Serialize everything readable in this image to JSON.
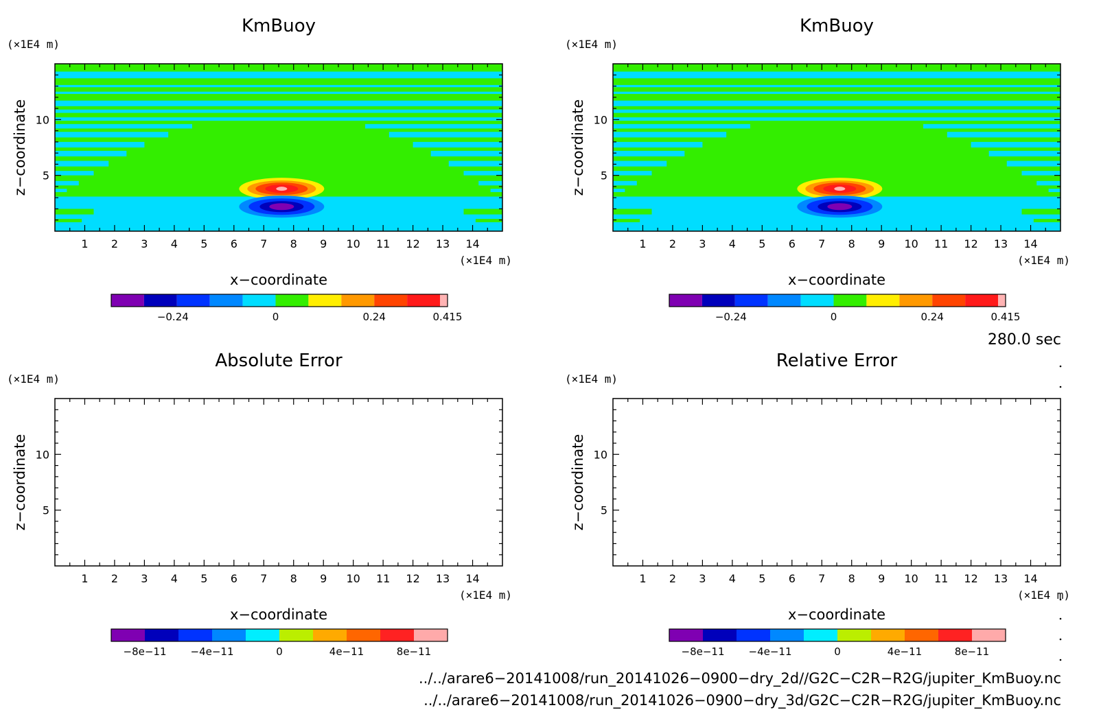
{
  "chart_data": [
    {
      "type": "contour",
      "title": "KmBuoy",
      "xlabel": "x−coordinate",
      "ylabel": "z−coordinate",
      "x_unit": "(×1E4 m)",
      "y_unit": "(×1E4 m)",
      "xlim": [
        0,
        15
      ],
      "ylim": [
        0,
        15
      ],
      "x_ticks": [
        "1",
        "2",
        "3",
        "4",
        "5",
        "6",
        "7",
        "8",
        "9",
        "10",
        "11",
        "12",
        "13",
        "14"
      ],
      "y_ticks": [
        "5",
        "10"
      ],
      "features": [
        {
          "kind": "positive-core",
          "x": 7.6,
          "z": 3.8,
          "value": 0.415
        },
        {
          "kind": "negative-core",
          "x": 7.6,
          "z": 2.2,
          "value": -0.415
        }
      ],
      "colorbar": {
        "labels": [
          "−0.24",
          "0",
          "0.24",
          "0.415"
        ],
        "colors": [
          "#7f00b2",
          "#0000bb",
          "#0033ff",
          "#0088ff",
          "#00ddff",
          "#33ee00",
          "#ffee00",
          "#ff9900",
          "#ff4400",
          "#ff1a1a",
          "#ffb3b3"
        ]
      }
    },
    {
      "type": "contour",
      "title": "KmBuoy",
      "xlabel": "x−coordinate",
      "ylabel": "z−coordinate",
      "x_unit": "(×1E4 m)",
      "y_unit": "(×1E4 m)",
      "xlim": [
        0,
        15
      ],
      "ylim": [
        0,
        15
      ],
      "x_ticks": [
        "1",
        "2",
        "3",
        "4",
        "5",
        "6",
        "7",
        "8",
        "9",
        "10",
        "11",
        "12",
        "13",
        "14"
      ],
      "y_ticks": [
        "5",
        "10"
      ],
      "features": [
        {
          "kind": "positive-core",
          "x": 7.6,
          "z": 3.8,
          "value": 0.415
        },
        {
          "kind": "negative-core",
          "x": 7.6,
          "z": 2.2,
          "value": -0.415
        }
      ],
      "colorbar": {
        "labels": [
          "−0.24",
          "0",
          "0.24",
          "0.415"
        ],
        "colors": [
          "#7f00b2",
          "#0000bb",
          "#0033ff",
          "#0088ff",
          "#00ddff",
          "#33ee00",
          "#ffee00",
          "#ff9900",
          "#ff4400",
          "#ff1a1a",
          "#ffb3b3"
        ]
      }
    },
    {
      "type": "contour",
      "title": "Absolute Error",
      "xlabel": "x−coordinate",
      "ylabel": "z−coordinate",
      "x_unit": "(×1E4 m)",
      "y_unit": "(×1E4 m)",
      "xlim": [
        0,
        15
      ],
      "ylim": [
        0,
        15
      ],
      "x_ticks": [
        "1",
        "2",
        "3",
        "4",
        "5",
        "6",
        "7",
        "8",
        "9",
        "10",
        "11",
        "12",
        "13",
        "14"
      ],
      "y_ticks": [
        "5",
        "10"
      ],
      "features": [],
      "colorbar": {
        "labels": [
          "−8e−11",
          "−4e−11",
          "0",
          "4e−11",
          "8e−11"
        ],
        "colors": [
          "#7f00b2",
          "#0000bb",
          "#0033ff",
          "#0088ff",
          "#00eeff",
          "#bbee00",
          "#ffaa00",
          "#ff6600",
          "#ff2222",
          "#ffaaaa"
        ]
      }
    },
    {
      "type": "contour",
      "title": "Relative Error",
      "xlabel": "x−coordinate",
      "ylabel": "z−coordinate",
      "x_unit": "(×1E4 m)",
      "y_unit": "(×1E4 m)",
      "xlim": [
        0,
        15
      ],
      "ylim": [
        0,
        15
      ],
      "x_ticks": [
        "1",
        "2",
        "3",
        "4",
        "5",
        "6",
        "7",
        "8",
        "9",
        "10",
        "11",
        "12",
        "13",
        "14"
      ],
      "y_ticks": [
        "5",
        "10"
      ],
      "features": [],
      "colorbar": {
        "labels": [
          "−8e−11",
          "−4e−11",
          "0",
          "4e−11",
          "8e−11"
        ],
        "colors": [
          "#7f00b2",
          "#0000bb",
          "#0033ff",
          "#0088ff",
          "#00eeff",
          "#bbee00",
          "#ffaa00",
          "#ff6600",
          "#ff2222",
          "#ffaaaa"
        ]
      }
    }
  ],
  "field_colors": {
    "background_green": "#33ee00",
    "band_cyan": "#00ddff"
  },
  "time_label": "280.0 sec",
  "footer_paths": [
    "../../arare6−20141008/run_20141026−0900−dry_2d//G2C−C2R−R2G/jupiter_KmBuoy.nc",
    "../../arare6−20141008/run_20141026−0900−dry_3d/G2C−C2R−R2G/jupiter_KmBuoy.nc"
  ]
}
